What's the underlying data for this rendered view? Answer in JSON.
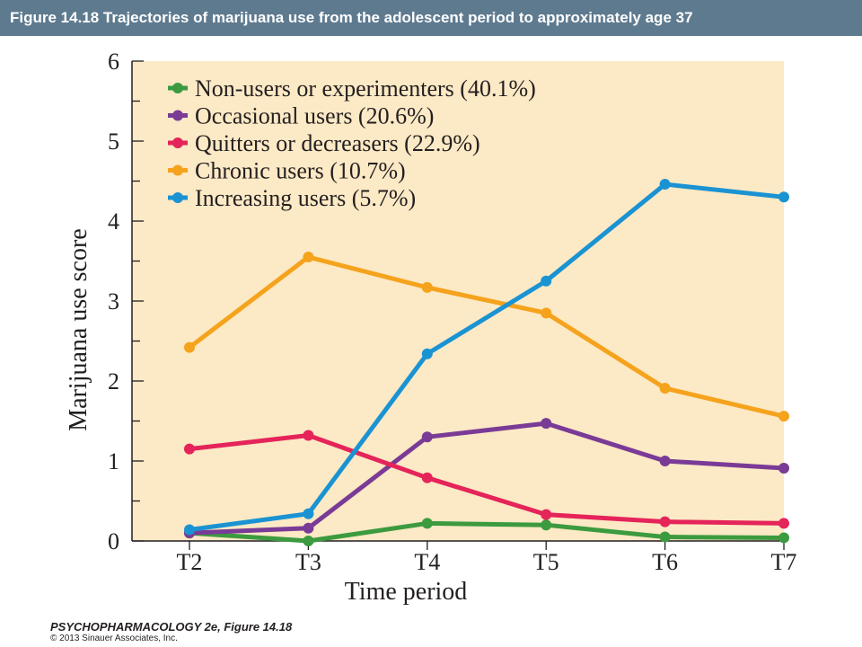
{
  "header": {
    "title": "Figure 14.18  Trajectories of marijuana use from the adolescent period to approximately age 37"
  },
  "footer": {
    "book": "PSYCHOPHARMACOLOGY 2e, Figure 14.18",
    "copyright": "© 2013 Sinauer Associates, Inc."
  },
  "chart_data": {
    "type": "line",
    "title": "",
    "xlabel": "Time period",
    "ylabel": "Marijuana use score",
    "categories": [
      "T2",
      "T3",
      "T4",
      "T5",
      "T6",
      "T7"
    ],
    "ylim": [
      0,
      6
    ],
    "yticks": [
      0,
      1,
      2,
      3,
      4,
      5,
      6
    ],
    "grid": false,
    "legend_position": "top-left",
    "background_color": "#fce9c5",
    "series": [
      {
        "name": "Non-users or experimenters (40.1%)",
        "color": "#3c9a3f",
        "values": [
          0.1,
          0.0,
          0.22,
          0.2,
          0.05,
          0.04
        ]
      },
      {
        "name": "Occasional users (20.6%)",
        "color": "#7a3b96",
        "values": [
          0.1,
          0.16,
          1.3,
          1.47,
          1.0,
          0.91
        ]
      },
      {
        "name": "Quitters or decreasers (22.9%)",
        "color": "#e5245a",
        "values": [
          1.15,
          1.32,
          0.79,
          0.33,
          0.24,
          0.22
        ]
      },
      {
        "name": "Chronic users (10.7%)",
        "color": "#f5a31c",
        "values": [
          2.42,
          3.55,
          3.17,
          2.85,
          1.91,
          1.56
        ]
      },
      {
        "name": "Increasing users (5.7%)",
        "color": "#1a93d3",
        "values": [
          0.14,
          0.34,
          2.34,
          3.25,
          4.46,
          4.3
        ]
      }
    ]
  }
}
